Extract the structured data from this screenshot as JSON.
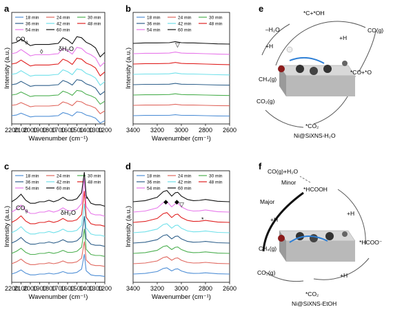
{
  "figure": {
    "panels": [
      {
        "letter": "a",
        "xlabel": "Wavenumber (cm⁻¹)",
        "ylabel": "Intensity (a.u.)",
        "xticks": [
          "2200",
          "2100",
          "2000",
          "1900",
          "1800",
          "1700",
          "1600",
          "1500",
          "1400",
          "1300",
          "1200"
        ],
        "annotations": [
          "CO",
          "g",
          "δH₂O",
          "◊"
        ]
      },
      {
        "letter": "b",
        "xlabel": "Wavenumber (cm⁻¹)",
        "ylabel": "Intensity (a.u.)",
        "xticks": [
          "3400",
          "3200",
          "3000",
          "2800",
          "2600"
        ],
        "annotations": [
          "▽"
        ]
      },
      {
        "letter": "c",
        "xlabel": "Wavenumber (cm⁻¹)",
        "ylabel": "Intensity (a.u.)",
        "xticks": [
          "2200",
          "2100",
          "2000",
          "1900",
          "1800",
          "1700",
          "1600",
          "1500",
          "1400",
          "1300",
          "1200"
        ],
        "annotations": [
          "CO",
          "g",
          "δH₂O",
          "*"
        ]
      },
      {
        "letter": "d",
        "xlabel": "Wavenumber (cm⁻¹)",
        "ylabel": "Intensity (a.u.)",
        "xticks": [
          "3400",
          "3200",
          "3000",
          "2800",
          "2600"
        ],
        "annotations": [
          "◆",
          "◆",
          "▽",
          "*"
        ]
      }
    ],
    "legend": [
      "18 min",
      "24 min",
      "30 min",
      "36 min",
      "42 min",
      "48 min",
      "54 min",
      "60 min"
    ],
    "series_colors": [
      "#4f8fd6",
      "#e0675e",
      "#4caf50",
      "#2e5f8a",
      "#6fe0ea",
      "#e02020",
      "#e777ea",
      "#111111"
    ],
    "scheme_e": {
      "letter": "e",
      "nodes": [
        "*C+*OH",
        "CO(g)",
        "–H₂O",
        "+H",
        "+H",
        "CH₄(g)",
        "*CO+*O",
        "CO₂(g)",
        "*CO₂"
      ],
      "caption": "Ni@SiXNS-H₂O"
    },
    "scheme_f": {
      "letter": "f",
      "nodes": [
        "CO(g)+H₂O",
        "Minor",
        "*HCOOH",
        "Major",
        "+H",
        "+H",
        "CH₄(g)",
        "*HCOO⁻",
        "CO₂(g)",
        "+H",
        "*CO₂"
      ],
      "caption": "Ni@SiXNS-EtOH"
    }
  },
  "chart_data": [
    {
      "type": "line",
      "panel": "a",
      "xlabel": "Wavenumber (cm⁻¹)",
      "ylabel": "Intensity (a.u.)",
      "xlim": [
        2200,
        1200
      ],
      "x": [
        2200,
        2150,
        2100,
        2050,
        2000,
        1950,
        1900,
        1850,
        1800,
        1750,
        1700,
        1650,
        1600,
        1550,
        1500,
        1450,
        1400,
        1350,
        1300,
        1250,
        1200
      ],
      "base": [
        0.0,
        0.05,
        0.2,
        0.05,
        -0.1,
        -0.05,
        -0.05,
        -0.05,
        -0.05,
        -0.02,
        0.0,
        0.25,
        0.15,
        -0.02,
        0.3,
        0.25,
        0.05,
        -0.05,
        -0.2,
        -0.6,
        -0.4
      ],
      "series": [
        {
          "name": "18 min"
        },
        {
          "name": "24 min"
        },
        {
          "name": "30 min"
        },
        {
          "name": "36 min"
        },
        {
          "name": "42 min"
        },
        {
          "name": "48 min"
        },
        {
          "name": "54 min"
        },
        {
          "name": "60 min"
        }
      ]
    },
    {
      "type": "line",
      "panel": "b",
      "xlabel": "Wavenumber (cm⁻¹)",
      "ylabel": "Intensity (a.u.)",
      "xlim": [
        3400,
        2600
      ],
      "x": [
        3400,
        3300,
        3200,
        3100,
        3050,
        3000,
        2950,
        2900,
        2800,
        2700,
        2600
      ],
      "base": [
        0.0,
        0.02,
        0.02,
        0.03,
        0.08,
        0.03,
        0.02,
        0.02,
        0.0,
        -0.02,
        -0.03
      ],
      "series": [
        {
          "name": "18 min"
        },
        {
          "name": "24 min"
        },
        {
          "name": "30 min"
        },
        {
          "name": "36 min"
        },
        {
          "name": "42 min"
        },
        {
          "name": "48 min"
        },
        {
          "name": "54 min"
        },
        {
          "name": "60 min"
        }
      ]
    },
    {
      "type": "line",
      "panel": "c",
      "xlabel": "Wavenumber (cm⁻¹)",
      "ylabel": "Intensity (a.u.)",
      "xlim": [
        2200,
        1200
      ],
      "x": [
        2200,
        2150,
        2100,
        2050,
        2000,
        1950,
        1900,
        1850,
        1800,
        1750,
        1700,
        1650,
        1600,
        1550,
        1500,
        1450,
        1420,
        1400,
        1350,
        1300,
        1250,
        1200
      ],
      "base": [
        0.0,
        0.1,
        0.25,
        0.05,
        -0.05,
        -0.05,
        0.0,
        0.0,
        0.05,
        0.0,
        0.05,
        0.15,
        0.05,
        0.05,
        0.1,
        0.3,
        1.2,
        0.2,
        -0.05,
        -0.1,
        -0.1,
        -0.15
      ],
      "series": [
        {
          "name": "18 min"
        },
        {
          "name": "24 min"
        },
        {
          "name": "30 min"
        },
        {
          "name": "36 min"
        },
        {
          "name": "42 min"
        },
        {
          "name": "48 min"
        },
        {
          "name": "54 min"
        },
        {
          "name": "60 min"
        }
      ]
    },
    {
      "type": "line",
      "panel": "d",
      "xlabel": "Wavenumber (cm⁻¹)",
      "ylabel": "Intensity (a.u.)",
      "xlim": [
        3400,
        2600
      ],
      "x": [
        3400,
        3300,
        3200,
        3150,
        3120,
        3080,
        3050,
        3030,
        3000,
        2950,
        2900,
        2850,
        2800,
        2700,
        2600
      ],
      "base": [
        0.0,
        0.05,
        0.2,
        0.45,
        0.5,
        0.25,
        0.4,
        0.42,
        0.25,
        0.1,
        0.05,
        0.06,
        0.1,
        0.02,
        0.0
      ],
      "series": [
        {
          "name": "18 min"
        },
        {
          "name": "24 min"
        },
        {
          "name": "30 min"
        },
        {
          "name": "36 min"
        },
        {
          "name": "42 min"
        },
        {
          "name": "48 min"
        },
        {
          "name": "54 min"
        },
        {
          "name": "60 min"
        }
      ]
    }
  ]
}
